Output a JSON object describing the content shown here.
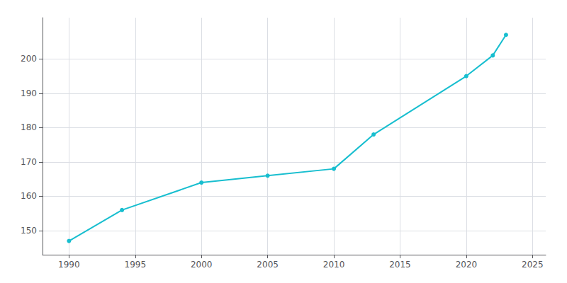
{
  "chart_data": {
    "type": "line",
    "x": [
      1990,
      1994,
      2000,
      2005,
      2010,
      2013,
      2020,
      2022,
      2023
    ],
    "values": [
      147,
      156,
      164,
      166,
      168,
      178,
      195,
      201,
      207
    ],
    "color": "#17BECF",
    "marker": "circle",
    "xlim": [
      1988,
      2026
    ],
    "ylim": [
      143,
      212
    ],
    "xticks": [
      1990,
      1995,
      2000,
      2005,
      2010,
      2015,
      2020,
      2025
    ],
    "yticks": [
      150,
      160,
      170,
      180,
      190,
      200
    ],
    "grid": true
  }
}
